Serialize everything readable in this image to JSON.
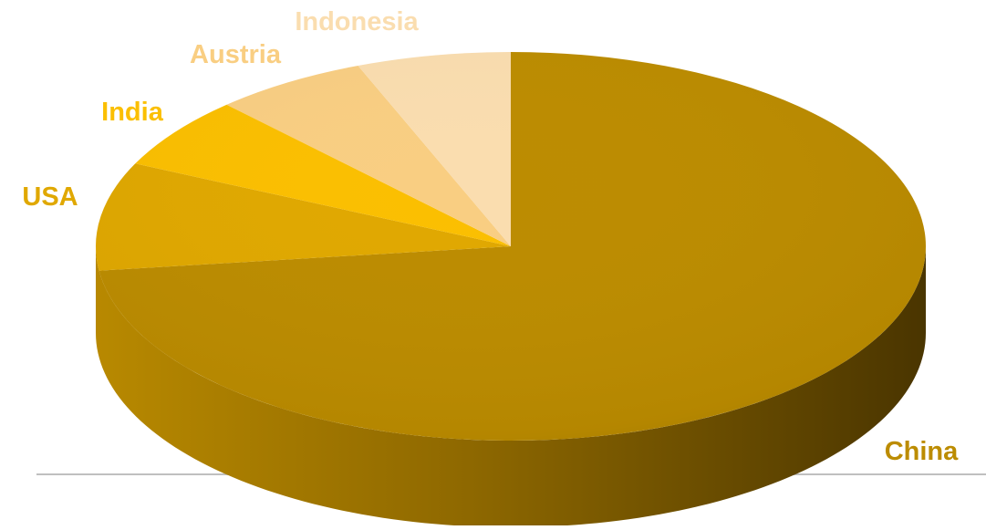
{
  "chart_data": {
    "type": "pie",
    "style": "3d",
    "title": "",
    "legend": "none",
    "categories": [
      "China",
      "USA",
      "India",
      "Austria",
      "Indonesia"
    ],
    "values": [
      73,
      9,
      6,
      6,
      6
    ],
    "colors": [
      "#BC8C00",
      "#E0A800",
      "#FBBF00",
      "#F9CE82",
      "#FADDAF"
    ]
  }
}
